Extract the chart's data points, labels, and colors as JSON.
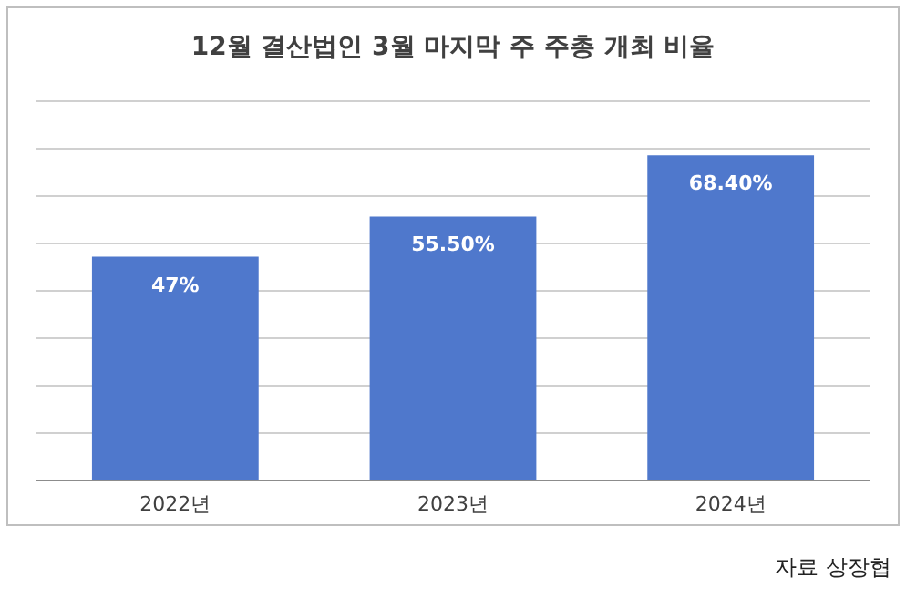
{
  "chart_data": {
    "type": "bar",
    "title": "12월 결산법인 3월 마지막 주 주총 개최 비율",
    "categories": [
      "2022년",
      "2023년",
      "2024년"
    ],
    "values": [
      47,
      55.5,
      68.4
    ],
    "value_labels": [
      "47%",
      "55.50%",
      "68.40%"
    ],
    "color": "#4f78cc",
    "ylim": [
      0,
      80
    ],
    "yticks": [
      {
        "value": 0,
        "label": null
      },
      {
        "value": 10,
        "label": null
      },
      {
        "value": 20,
        "label": null
      },
      {
        "value": 30,
        "label": null
      },
      {
        "value": 40,
        "label": null
      },
      {
        "value": 50,
        "label": null
      },
      {
        "value": 60,
        "label": null
      },
      {
        "value": 70,
        "label": null
      },
      {
        "value": 80,
        "label": null
      }
    ],
    "grid": "y",
    "annotations": [
      "자료 상장협"
    ]
  }
}
